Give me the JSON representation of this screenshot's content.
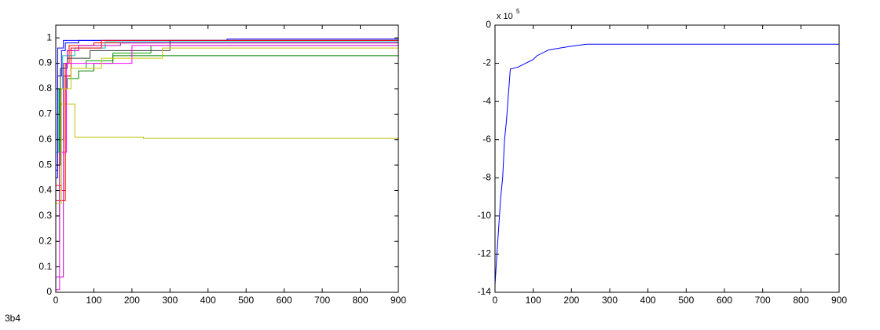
{
  "chart_data": [
    {
      "type": "step",
      "xlim": [
        0,
        900
      ],
      "ylim": [
        0,
        1.05
      ],
      "xticks": [
        0,
        100,
        200,
        300,
        400,
        500,
        600,
        700,
        800,
        900
      ],
      "yticks": [
        0,
        0.1,
        0.2,
        0.3,
        0.4,
        0.5,
        0.6,
        0.7,
        0.8,
        0.9,
        1
      ],
      "series": [
        {
          "color": "#0000ff",
          "x": [
            0,
            5,
            15,
            25,
            60,
            900
          ],
          "values": [
            0.45,
            0.85,
            0.95,
            0.98,
            0.99,
            0.99
          ]
        },
        {
          "color": "#00a000",
          "x": [
            0,
            10,
            20,
            40,
            80,
            150,
            250,
            900
          ],
          "values": [
            0.2,
            0.6,
            0.85,
            0.88,
            0.91,
            0.94,
            0.97,
            0.98
          ]
        },
        {
          "color": "#ff0000",
          "x": [
            0,
            15,
            25,
            35,
            100,
            900
          ],
          "values": [
            0.42,
            0.4,
            0.9,
            0.97,
            0.98,
            0.98
          ]
        },
        {
          "color": "#00bfbf",
          "x": [
            0,
            8,
            18,
            50,
            130,
            900
          ],
          "values": [
            0.55,
            0.8,
            0.93,
            0.96,
            0.985,
            0.985
          ]
        },
        {
          "color": "#bf00bf",
          "x": [
            0,
            20,
            30,
            60,
            170,
            900
          ],
          "values": [
            0.06,
            0.9,
            0.95,
            0.97,
            0.98,
            0.98
          ]
        },
        {
          "color": "#bfbf00",
          "x": [
            0,
            10,
            50,
            230,
            900
          ],
          "values": [
            0.3,
            0.74,
            0.61,
            0.605,
            0.605
          ]
        },
        {
          "color": "#404040",
          "x": [
            0,
            12,
            30,
            90,
            300,
            900
          ],
          "values": [
            0.5,
            0.88,
            0.92,
            0.95,
            0.99,
            0.99
          ]
        },
        {
          "color": "#008000",
          "x": [
            0,
            10,
            30,
            60,
            100,
            150,
            900
          ],
          "values": [
            0.3,
            0.8,
            0.84,
            0.87,
            0.9,
            0.93,
            0.98
          ]
        },
        {
          "color": "#0000ff",
          "x": [
            0,
            5,
            20,
            450,
            900
          ],
          "values": [
            0.48,
            0.96,
            0.99,
            0.995,
            0.995
          ]
        },
        {
          "color": "#ff0000",
          "x": [
            0,
            25,
            40,
            120,
            900
          ],
          "values": [
            0.36,
            0.85,
            0.96,
            0.99,
            0.99
          ]
        },
        {
          "color": "#ff00ff",
          "x": [
            0,
            10,
            28,
            200,
            900
          ],
          "values": [
            0.01,
            0.55,
            0.9,
            0.97,
            0.97
          ]
        },
        {
          "color": "#c8c800",
          "x": [
            0,
            15,
            40,
            120,
            280,
            900
          ],
          "values": [
            0.35,
            0.8,
            0.88,
            0.92,
            0.96,
            0.97
          ]
        }
      ]
    },
    {
      "type": "line",
      "xlim": [
        0,
        900
      ],
      "ylim": [
        -14,
        0
      ],
      "xticks": [
        0,
        100,
        200,
        300,
        400,
        500,
        600,
        700,
        800,
        900
      ],
      "yticks": [
        -14,
        -12,
        -10,
        -8,
        -6,
        -4,
        -2,
        0
      ],
      "y_multiplier": "x 10",
      "y_exponent": 5,
      "series": [
        {
          "color": "#0000ff",
          "x": [
            0,
            5,
            10,
            15,
            20,
            25,
            30,
            40,
            60,
            80,
            100,
            110,
            140,
            170,
            200,
            240,
            900
          ],
          "values": [
            -13.6,
            -12,
            -10.5,
            -9,
            -8,
            -6,
            -5,
            -2.3,
            -2.2,
            -2,
            -1.8,
            -1.6,
            -1.3,
            -1.2,
            -1.1,
            -1,
            -1
          ]
        }
      ]
    }
  ],
  "figure_label": "3b4"
}
